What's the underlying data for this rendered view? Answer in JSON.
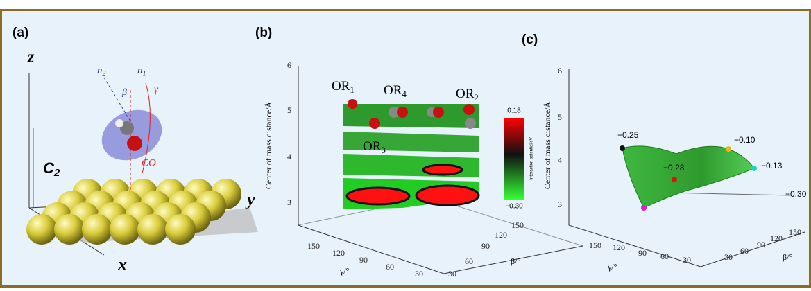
{
  "panel_a": {
    "label": "(a)",
    "axis_z": "z",
    "axis_y": "y",
    "axis_x": "x",
    "symmetry": "C",
    "symmetry_sub": "2",
    "normal_2": "n",
    "normal_2_sub": "2",
    "normal_1": "n",
    "normal_1_sub": "1",
    "angle_beta": "β",
    "angle_gamma": "γ",
    "bond": "CO"
  },
  "panel_b": {
    "label": "(b)",
    "z_axis_label": "Center of mass distance/Å",
    "z_ticks": [
      "3",
      "4",
      "5",
      "6"
    ],
    "orientations": [
      {
        "name": "OR",
        "sub": "1"
      },
      {
        "name": "OR",
        "sub": "4"
      },
      {
        "name": "OR",
        "sub": "2"
      },
      {
        "name": "OR",
        "sub": "3"
      }
    ],
    "colorbar": {
      "max": "0.18",
      "min": "−0.30",
      "label": "Interaction potential/eV"
    },
    "gamma_label": "γ/°",
    "gamma_ticks": [
      "150",
      "120",
      "90",
      "60",
      "30"
    ],
    "beta_label": "β/°",
    "beta_ticks": [
      "30",
      "60",
      "90",
      "120",
      "150"
    ]
  },
  "panel_c": {
    "label": "(c)",
    "z_axis_label": "Center of mass distance/Å",
    "z_ticks": [
      "3",
      "4",
      "5",
      "6"
    ],
    "points": [
      "−0.25",
      "−0.10",
      "−0.28",
      "−0.13",
      "−0.30"
    ],
    "gamma_label": "γ/°",
    "gamma_ticks": [
      "150",
      "120",
      "90",
      "60",
      "30"
    ],
    "beta_label": "β/°",
    "beta_ticks": [
      "30",
      "60",
      "90",
      "120",
      "150"
    ]
  }
}
